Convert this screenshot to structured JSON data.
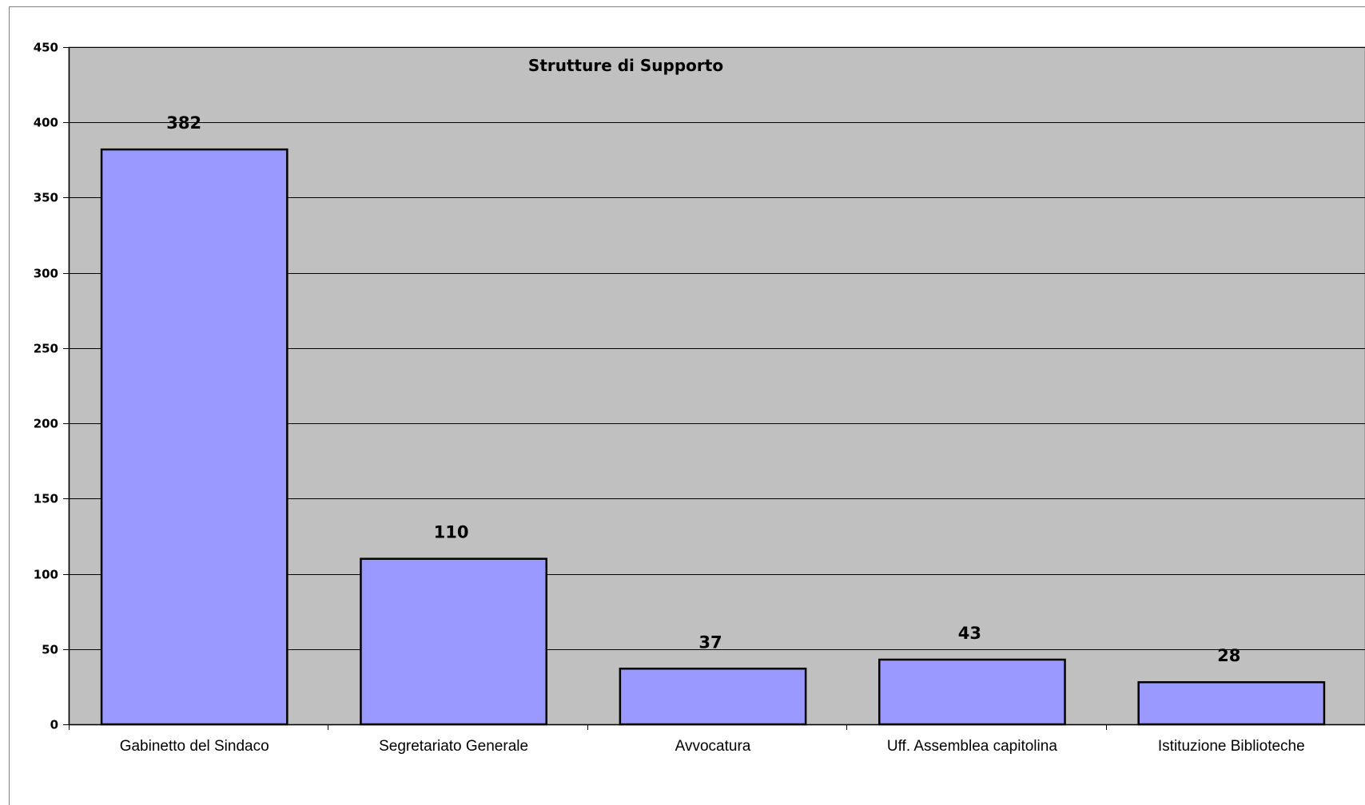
{
  "chart_data": {
    "type": "bar",
    "title": "Strutture di Supporto",
    "categories": [
      "Gabinetto del Sindaco",
      "Segretariato Generale",
      "Avvocatura",
      "Uff. Assemblea capitolina",
      "Istituzione Biblioteche"
    ],
    "values": [
      382,
      110,
      37,
      43,
      28
    ],
    "ylim": [
      0,
      450
    ],
    "yticks": [
      0,
      50,
      100,
      150,
      200,
      250,
      300,
      350,
      400,
      450
    ],
    "grid": true,
    "legend": "none",
    "colors": {
      "bar_fill": "#9999ff",
      "bar_stroke": "#000000",
      "plot_background": "#c0c0c0",
      "gridline": "#000000"
    }
  }
}
